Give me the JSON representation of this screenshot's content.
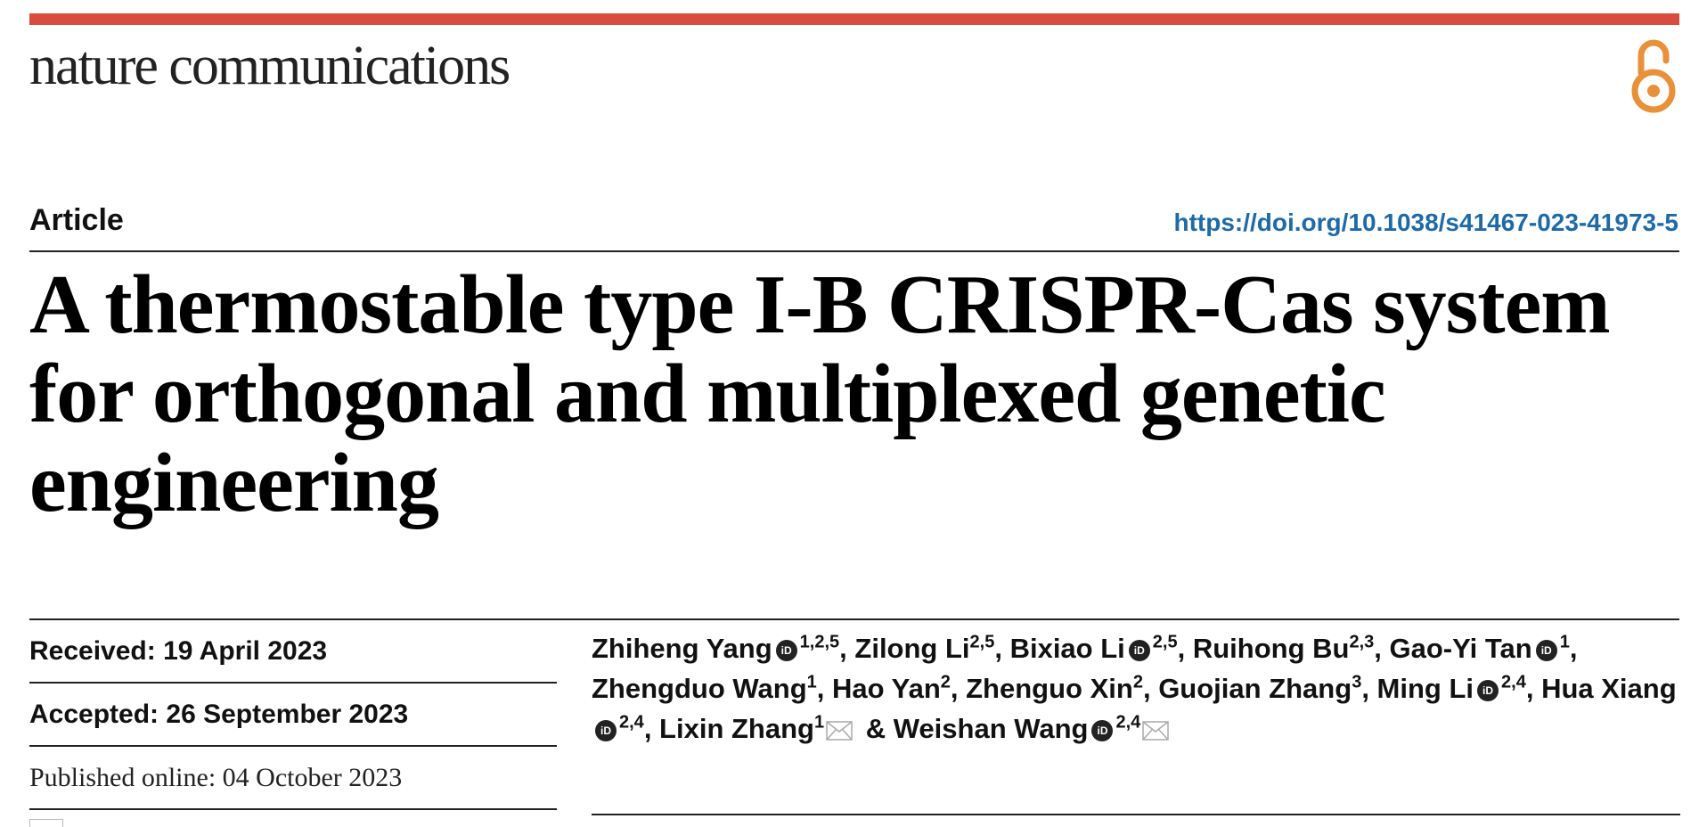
{
  "header": {
    "journal": "nature communications",
    "accent_color": "#d94b3f",
    "open_access_icon": "open-access-lock-icon"
  },
  "article": {
    "type": "Article",
    "doi": "https://doi.org/10.1038/s41467-023-41973-5",
    "title": "A thermostable type I-B CRISPR-Cas system for orthogonal and multiplexed genetic engineering"
  },
  "dates": {
    "received_label": "Received:",
    "received_value": "19 April 2023",
    "accepted_label": "Accepted:",
    "accepted_value": "26 September 2023",
    "published_label": "Published online:",
    "published_value": "04 October 2023"
  },
  "authors": [
    {
      "name": "Zhiheng Yang",
      "orcid": true,
      "aff": "1,2,5",
      "mail": false
    },
    {
      "name": "Zilong Li",
      "orcid": false,
      "aff": "2,5",
      "mail": false
    },
    {
      "name": "Bixiao Li",
      "orcid": true,
      "aff": "2,5",
      "mail": false
    },
    {
      "name": "Ruihong Bu",
      "orcid": false,
      "aff": "2,3",
      "mail": false
    },
    {
      "name": "Gao-Yi Tan",
      "orcid": true,
      "aff": "1",
      "mail": false
    },
    {
      "name": "Zhengduo Wang",
      "orcid": false,
      "aff": "1",
      "mail": false
    },
    {
      "name": "Hao Yan",
      "orcid": false,
      "aff": "2",
      "mail": false
    },
    {
      "name": "Zhenguo Xin",
      "orcid": false,
      "aff": "2",
      "mail": false
    },
    {
      "name": "Guojian Zhang",
      "orcid": false,
      "aff": "3",
      "mail": false
    },
    {
      "name": "Ming Li",
      "orcid": true,
      "aff": "2,4",
      "mail": false
    },
    {
      "name": "Hua Xiang",
      "orcid": true,
      "aff": "2,4",
      "mail": false
    },
    {
      "name": "Lixin Zhang",
      "orcid": false,
      "aff": "1",
      "mail": true
    },
    {
      "name": "Weishan Wang",
      "orcid": true,
      "aff": "2,4",
      "mail": true
    }
  ],
  "authors_sep": ", ",
  "authors_last_sep": " & "
}
